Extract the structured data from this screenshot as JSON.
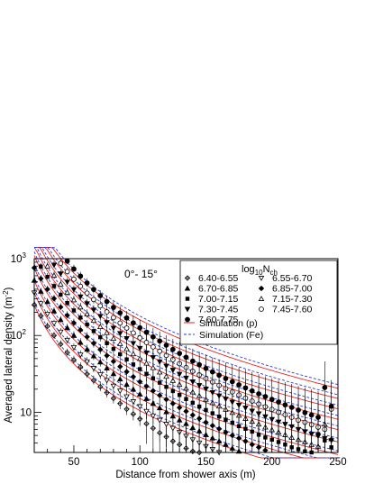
{
  "chart_data": {
    "type": "scatter",
    "title": "",
    "annotation": "0°- 15°",
    "xlabel": "Distance from shower axis (m)",
    "ylabel": "Averaged lateral density (m",
    "ylabel_sup": "-2",
    "ylabel_close": ")",
    "xlim": [
      20,
      250
    ],
    "ylim": [
      3,
      1000
    ],
    "y_scale": "log",
    "x_ticks": [
      50,
      100,
      150,
      200,
      250
    ],
    "y_ticks": [
      {
        "value": 10,
        "base": "10",
        "exp": ""
      },
      {
        "value": 100,
        "base": "10",
        "exp": "2"
      },
      {
        "value": 1000,
        "base": "10",
        "exp": "3"
      }
    ],
    "legend": {
      "position": "top-right",
      "header_main": "log",
      "header_sub1": "10",
      "header_mid": "N",
      "header_sub2": "ch"
    },
    "simulation_p_label": "Simulation (p)",
    "simulation_fe_label": "Simulation (Fe)",
    "colors": {
      "proton": "#e8231f",
      "iron": "#2a3bd8",
      "data": "#000000"
    },
    "series": [
      {
        "name": "6.40-6.55",
        "marker": "cross-diamond",
        "A": 250,
        "x": [
          20,
          25,
          30,
          35,
          40,
          45,
          50,
          55,
          60,
          65,
          70,
          75,
          80,
          85,
          90,
          95,
          100,
          105,
          110,
          115,
          120,
          125,
          130,
          135,
          140,
          145
        ],
        "y": [
          250,
          180,
          132,
          100,
          77,
          60,
          48,
          39,
          31.5,
          26,
          21.5,
          18,
          15.2,
          13,
          11,
          9.5,
          8.2,
          7.1,
          6.2,
          5.4,
          4.8,
          4.2,
          3.8,
          3.4,
          3.1,
          3.0
        ]
      },
      {
        "name": "6.55-6.70",
        "marker": "triangle-down-open",
        "A": 360,
        "x": [
          20,
          25,
          30,
          35,
          40,
          45,
          50,
          55,
          60,
          65,
          70,
          75,
          80,
          85,
          90,
          95,
          100,
          105,
          110,
          115,
          120,
          125,
          130,
          135,
          140,
          145,
          150,
          155,
          160
        ],
        "y": [
          360,
          260,
          190,
          144,
          111,
          87,
          70,
          56,
          45.5,
          37.5,
          31,
          26,
          22,
          19,
          16,
          13.8,
          11.9,
          10.3,
          9,
          7.9,
          7,
          6.2,
          5.5,
          4.9,
          4.4,
          4.0,
          3.6,
          3.3,
          3.0
        ]
      },
      {
        "name": "6.70-6.85",
        "marker": "triangle-up",
        "A": 520,
        "x": [
          20,
          25,
          30,
          35,
          40,
          45,
          50,
          55,
          60,
          65,
          70,
          75,
          80,
          85,
          90,
          95,
          100,
          105,
          110,
          115,
          120,
          125,
          130,
          135,
          140,
          145,
          150,
          155,
          160,
          165,
          170,
          175
        ],
        "y": [
          520,
          375,
          275,
          208,
          160,
          126,
          100,
          81,
          66,
          54,
          45,
          37.5,
          31.7,
          27,
          23,
          19.9,
          17.2,
          15,
          13,
          11.4,
          10.1,
          8.9,
          7.9,
          7.1,
          6.3,
          5.7,
          5.1,
          4.6,
          4.2,
          3.8,
          3.4,
          3.1
        ]
      },
      {
        "name": "6.85-7.00",
        "marker": "cross-diamond-filled",
        "A": 760,
        "x": [
          20,
          25,
          30,
          35,
          40,
          45,
          50,
          55,
          60,
          65,
          70,
          75,
          80,
          85,
          90,
          95,
          100,
          105,
          110,
          115,
          120,
          125,
          130,
          135,
          140,
          145,
          150,
          155,
          160,
          165,
          170,
          175,
          180,
          185,
          190,
          195
        ],
        "y": [
          760,
          550,
          400,
          303,
          234,
          183,
          146,
          118,
          96,
          79,
          65.5,
          54.7,
          46,
          39.4,
          33.7,
          29,
          25,
          21.8,
          19,
          16.6,
          14.7,
          13,
          11.5,
          10.3,
          9.2,
          8.3,
          7.4,
          6.7,
          6.1,
          5.5,
          5,
          4.6,
          4.2,
          3.8,
          3.5,
          3.2
        ]
      },
      {
        "name": "7.00-7.15",
        "marker": "square",
        "A": 1100,
        "x": [
          20,
          25,
          30,
          35,
          40,
          45,
          50,
          55,
          60,
          65,
          70,
          75,
          80,
          85,
          90,
          95,
          100,
          105,
          110,
          115,
          120,
          125,
          130,
          135,
          140,
          145,
          150,
          155,
          160,
          165,
          170,
          175,
          180,
          185,
          190,
          195,
          200,
          205,
          210,
          215,
          220,
          225,
          230,
          235,
          240,
          245
        ],
        "y": [
          1100,
          790,
          580,
          440,
          340,
          265,
          212,
          171,
          139,
          114,
          95,
          79.4,
          66.9,
          57,
          48.9,
          42,
          36.5,
          31.7,
          27.7,
          24.3,
          21.4,
          18.9,
          16.8,
          14.9,
          13.3,
          11.9,
          10.7,
          9.7,
          8.8,
          8,
          7.3,
          6.6,
          6.1,
          5.6,
          5.1,
          4.7,
          4.4,
          4.1,
          3.8,
          3.5,
          3.3,
          3.1,
          3.0,
          5.2,
          4.3,
          3.5
        ]
      },
      {
        "name": "7.15-7.30",
        "marker": "triangle-up-open",
        "A": 1500,
        "x": [
          30,
          35,
          40,
          45,
          50,
          55,
          60,
          65,
          70,
          75,
          80,
          85,
          90,
          95,
          100,
          105,
          110,
          115,
          120,
          125,
          130,
          135,
          140,
          145,
          150,
          155,
          160,
          165,
          170,
          175,
          180,
          185,
          190,
          195,
          200,
          205,
          210,
          215,
          220,
          225,
          230,
          235,
          240,
          245
        ],
        "y": [
          800,
          605,
          466,
          364,
          290,
          234,
          190,
          157,
          130,
          108.5,
          91.5,
          78,
          67,
          57.5,
          50,
          43.5,
          38,
          33.3,
          29.3,
          25.9,
          23,
          20.5,
          18.3,
          16.4,
          14.7,
          13.3,
          12,
          10.9,
          9.9,
          9.1,
          8.3,
          7.6,
          7,
          6.4,
          5.9,
          5.5,
          5.1,
          4.7,
          4.4,
          4.1,
          3.8,
          3.6,
          7.0,
          4.5
        ]
      },
      {
        "name": "7.30-7.45",
        "marker": "triangle-down",
        "A": 2050,
        "x": [
          35,
          40,
          45,
          50,
          55,
          60,
          65,
          70,
          75,
          80,
          85,
          90,
          95,
          100,
          105,
          110,
          115,
          120,
          125,
          130,
          135,
          140,
          145,
          150,
          155,
          160,
          165,
          170,
          175,
          180,
          185,
          190,
          195,
          200,
          205,
          210,
          215,
          220,
          225,
          230,
          235,
          240,
          245
        ],
        "y": [
          828,
          637,
          498,
          396,
          320,
          260,
          215,
          178,
          148,
          125,
          106.5,
          91.5,
          79,
          68.3,
          59.4,
          51.8,
          45.5,
          40,
          35.4,
          31.4,
          28,
          25,
          22.4,
          20.1,
          18.1,
          16.4,
          14.9,
          13.6,
          12.4,
          11.4,
          10.4,
          9.6,
          8.8,
          8.1,
          7.5,
          7,
          6.5,
          6,
          5.6,
          5.2,
          4.9,
          4.6,
          4.3
        ]
      },
      {
        "name": "7.45-7.60",
        "marker": "circle-open",
        "A": 2800,
        "x": [
          40,
          45,
          50,
          55,
          60,
          65,
          70,
          75,
          80,
          85,
          90,
          95,
          100,
          105,
          110,
          115,
          120,
          125,
          130,
          135,
          140,
          145,
          150,
          155,
          160,
          165,
          170,
          175,
          180,
          185,
          190,
          195,
          200,
          205,
          210,
          215,
          220,
          225,
          230,
          235,
          240,
          245
        ],
        "y": [
          870,
          680,
          540,
          437,
          356,
          294,
          243,
          203,
          171,
          145,
          125,
          108,
          93,
          81,
          71,
          62.4,
          55,
          48.6,
          43,
          38.3,
          34.2,
          30.6,
          27.5,
          24.8,
          22.4,
          20.3,
          18.4,
          16.8,
          15.3,
          14,
          12.8,
          11.8,
          10.9,
          10,
          9.3,
          8.6,
          7.9,
          7.4,
          6.9,
          6.4,
          6,
          11
        ]
      },
      {
        "name": "7.60-7.75",
        "marker": "circle",
        "A": 3800,
        "x": [
          45,
          50,
          55,
          60,
          65,
          70,
          75,
          80,
          85,
          90,
          95,
          100,
          105,
          110,
          115,
          120,
          125,
          130,
          135,
          140,
          145,
          150,
          155,
          160,
          165,
          170,
          175,
          180,
          185,
          190,
          195,
          200,
          205,
          210,
          215,
          220,
          225,
          230,
          235,
          240,
          245
        ],
        "y": [
          930,
          735,
          593,
          483,
          398,
          330,
          276,
          232,
          197,
          169,
          146,
          126,
          110,
          96,
          84.7,
          74.7,
          66,
          58.5,
          52,
          46.4,
          41.6,
          37.3,
          33.6,
          30.4,
          27.5,
          25,
          22.8,
          20.8,
          19,
          17.4,
          16,
          14.7,
          13.6,
          12.5,
          11.6,
          10.7,
          9.9,
          9.2,
          8.6,
          21,
          12
        ]
      }
    ]
  }
}
